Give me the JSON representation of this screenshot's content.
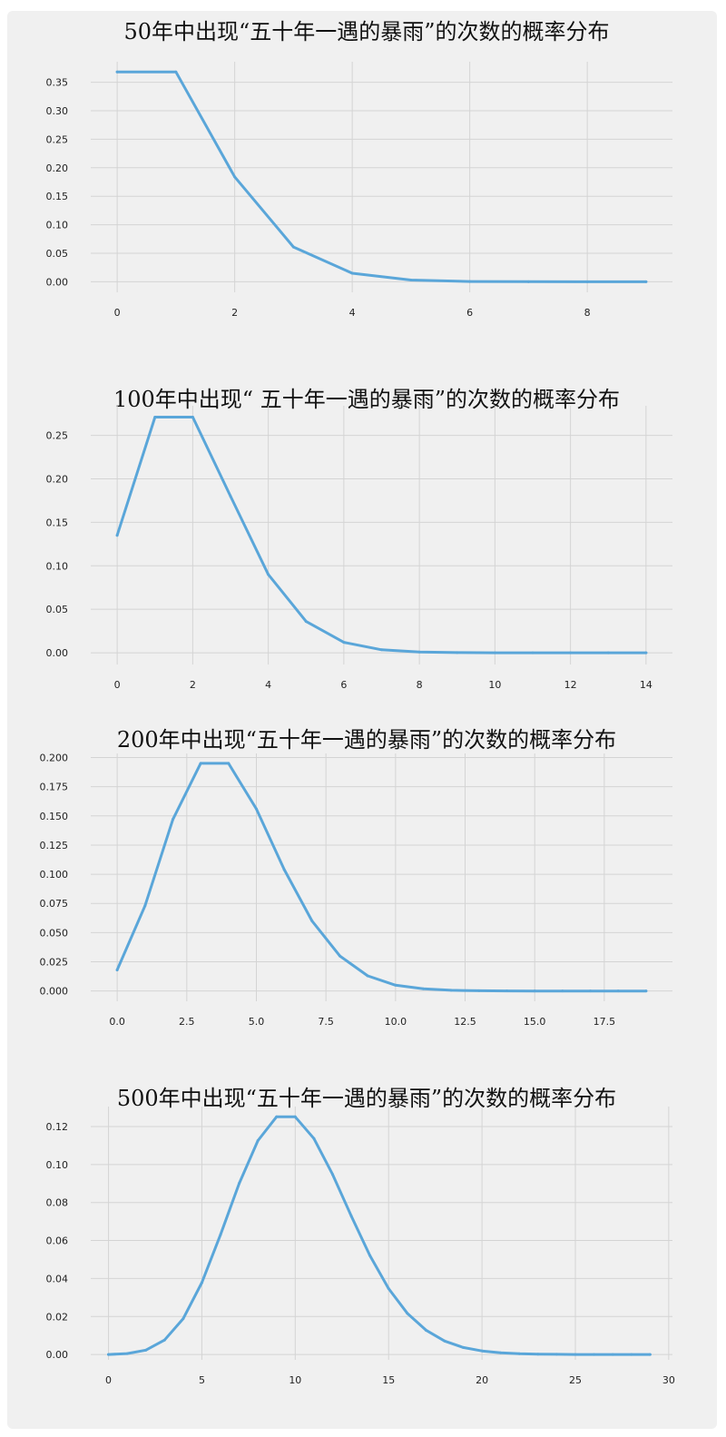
{
  "colors": {
    "background": "#f0f0f0",
    "grid": "#d4d4d4",
    "line": "#5aa6d9"
  },
  "chart_data": [
    {
      "type": "line",
      "title": "50年中出现“五十年一遇的暴雨”的次数的概率分布",
      "xlabel": "",
      "ylabel": "",
      "xlim": [
        -0.45,
        9.45
      ],
      "ylim": [
        -0.0185,
        0.386
      ],
      "xticks": [
        0,
        2,
        4,
        6,
        8
      ],
      "xtick_labels": [
        "0",
        "2",
        "4",
        "6",
        "8"
      ],
      "yticks": [
        0,
        0.05,
        0.1,
        0.15,
        0.2,
        0.25,
        0.3,
        0.35
      ],
      "ytick_labels": [
        "0.00",
        "0.05",
        "0.10",
        "0.15",
        "0.20",
        "0.25",
        "0.30",
        "0.35"
      ],
      "grid": true,
      "series": [
        {
          "x": [
            0,
            1,
            2,
            3,
            4,
            5,
            6,
            7,
            8,
            9
          ],
          "values": [
            0.368,
            0.368,
            0.184,
            0.061,
            0.015,
            0.003,
            0.0005,
            0.0001,
            0.0,
            0.0
          ]
        }
      ]
    },
    {
      "type": "line",
      "title": "100年中出现“ 五十年一遇的暴雨”的次数的概率分布",
      "xlabel": "",
      "ylabel": "",
      "xlim": [
        -0.7,
        14.7
      ],
      "ylim": [
        -0.0135,
        0.284
      ],
      "xticks": [
        0,
        2,
        4,
        6,
        8,
        10,
        12,
        14
      ],
      "xtick_labels": [
        "0",
        "2",
        "4",
        "6",
        "8",
        "10",
        "12",
        "14"
      ],
      "yticks": [
        0,
        0.05,
        0.1,
        0.15,
        0.2,
        0.25
      ],
      "ytick_labels": [
        "0.00",
        "0.05",
        "0.10",
        "0.15",
        "0.20",
        "0.25"
      ],
      "grid": true,
      "series": [
        {
          "x": [
            0,
            1,
            2,
            3,
            4,
            5,
            6,
            7,
            8,
            9,
            10,
            11,
            12,
            13,
            14
          ],
          "values": [
            0.135,
            0.271,
            0.271,
            0.18,
            0.09,
            0.036,
            0.012,
            0.0034,
            0.0009,
            0.0002,
            0.0,
            0.0,
            0.0,
            0.0,
            0.0
          ]
        }
      ]
    },
    {
      "type": "line",
      "title": "200年中出现“五十年一遇的暴雨”的次数的概率分布",
      "xlabel": "",
      "ylabel": "",
      "xlim": [
        -0.95,
        19.95
      ],
      "ylim": [
        -0.0088,
        0.2035
      ],
      "xticks": [
        0,
        2.5,
        5,
        7.5,
        10,
        12.5,
        15,
        17.5
      ],
      "xtick_labels": [
        "0.0",
        "2.5",
        "5.0",
        "7.5",
        "10.0",
        "12.5",
        "15.0",
        "17.5"
      ],
      "yticks": [
        0,
        0.025,
        0.05,
        0.075,
        0.1,
        0.125,
        0.15,
        0.175,
        0.2
      ],
      "ytick_labels": [
        "0.000",
        "0.025",
        "0.050",
        "0.075",
        "0.100",
        "0.125",
        "0.150",
        "0.175",
        "0.200"
      ],
      "grid": true,
      "series": [
        {
          "x": [
            0,
            1,
            2,
            3,
            4,
            5,
            6,
            7,
            8,
            9,
            10,
            11,
            12,
            13,
            14,
            15,
            16,
            17,
            18,
            19
          ],
          "values": [
            0.018,
            0.073,
            0.147,
            0.195,
            0.195,
            0.156,
            0.104,
            0.06,
            0.03,
            0.013,
            0.005,
            0.0019,
            0.0006,
            0.0002,
            0.0001,
            0.0,
            0.0,
            0.0,
            0.0,
            0.0
          ]
        }
      ]
    },
    {
      "type": "line",
      "title": "500年中出现“五十年一遇的暴雨”的次数的概率分布",
      "xlabel": "",
      "ylabel": "",
      "xlim": [
        -0.95,
        30.2
      ],
      "ylim": [
        -0.0028,
        0.1305
      ],
      "xticks": [
        0,
        5,
        10,
        15,
        20,
        25,
        30
      ],
      "xtick_labels": [
        "0",
        "5",
        "10",
        "15",
        "20",
        "25",
        "30"
      ],
      "yticks": [
        0,
        0.02,
        0.04,
        0.06,
        0.08,
        0.1,
        0.12
      ],
      "ytick_labels": [
        "0.00",
        "0.02",
        "0.04",
        "0.06",
        "0.08",
        "0.10",
        "0.12"
      ],
      "grid": true,
      "series": [
        {
          "x": [
            0,
            1,
            2,
            3,
            4,
            5,
            6,
            7,
            8,
            9,
            10,
            11,
            12,
            13,
            14,
            15,
            16,
            17,
            18,
            19,
            20,
            21,
            22,
            23,
            24,
            25,
            26,
            27,
            28,
            29
          ],
          "values": [
            0.0,
            0.0005,
            0.0023,
            0.0076,
            0.0189,
            0.0378,
            0.0631,
            0.0901,
            0.1126,
            0.1251,
            0.1251,
            0.1137,
            0.0948,
            0.0729,
            0.0521,
            0.0347,
            0.0217,
            0.0128,
            0.0071,
            0.0037,
            0.0019,
            0.0009,
            0.0004,
            0.0002,
            0.0001,
            0.0,
            0.0,
            0.0,
            0.0,
            0.0
          ]
        }
      ]
    }
  ]
}
